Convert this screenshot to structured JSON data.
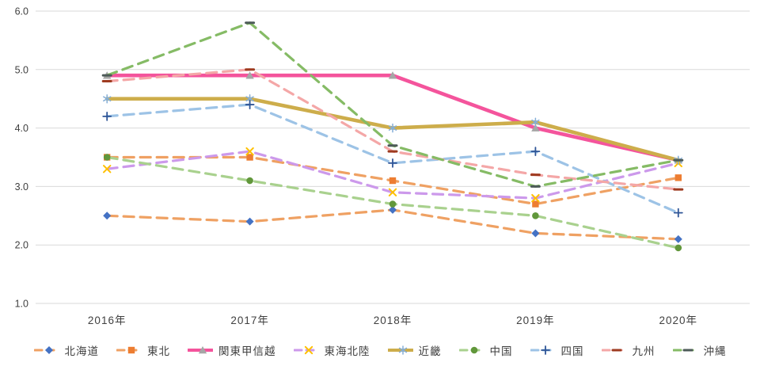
{
  "chart": {
    "background": "#ffffff",
    "grid_color": "#d9d9d9",
    "axis_text_color": "#404040",
    "y_tick_labels": [
      "6.0",
      "5.0",
      "4.0",
      "3.0",
      "2.0",
      "1.0"
    ]
  },
  "chart_data": {
    "type": "line",
    "title": "",
    "xlabel": "",
    "ylabel": "",
    "categories": [
      "2016年",
      "2017年",
      "2018年",
      "2019年",
      "2020年"
    ],
    "ylim": [
      1.0,
      6.0
    ],
    "y_tick_step": 1.0,
    "grid": true,
    "legend_position": "bottom",
    "series": [
      {
        "name": "北海道",
        "key": "hokkaido",
        "values": [
          2.5,
          2.4,
          2.6,
          2.2,
          2.1
        ],
        "color": "#efa163",
        "dashed": true,
        "width": 3.2,
        "marker": "diamond",
        "marker_color": "#4472c4"
      },
      {
        "name": "東北",
        "key": "tohoku",
        "values": [
          3.5,
          3.5,
          3.1,
          2.7,
          3.15
        ],
        "color": "#efa163",
        "dashed": true,
        "width": 3.2,
        "marker": "square",
        "marker_color": "#ed7d31"
      },
      {
        "name": "関東甲信越",
        "key": "kanto-koshinetsu",
        "values": [
          4.9,
          4.9,
          4.9,
          4.0,
          3.45
        ],
        "color": "#f4549c",
        "dashed": false,
        "width": 4.6,
        "marker": "triangle",
        "marker_color": "#a6a6a6"
      },
      {
        "name": "東海北陸",
        "key": "tokai-hokuriku",
        "values": [
          3.3,
          3.6,
          2.9,
          2.8,
          3.4
        ],
        "color": "#cc99eb",
        "dashed": true,
        "width": 3.2,
        "marker": "x",
        "marker_color": "#ffc000"
      },
      {
        "name": "近畿",
        "key": "kinki",
        "values": [
          4.5,
          4.5,
          4.0,
          4.1,
          3.45
        ],
        "color": "#cdad4b",
        "dashed": false,
        "width": 4.6,
        "marker": "asterisk",
        "marker_color": "#84aed8"
      },
      {
        "name": "中国",
        "key": "chugoku",
        "values": [
          3.5,
          3.1,
          2.7,
          2.5,
          1.95
        ],
        "color": "#a9d18e",
        "dashed": true,
        "width": 3.2,
        "marker": "circle",
        "marker_color": "#61973b"
      },
      {
        "name": "四国",
        "key": "shikoku",
        "values": [
          4.2,
          4.4,
          3.4,
          3.6,
          2.55
        ],
        "color": "#9dc3e6",
        "dashed": true,
        "width": 3.2,
        "marker": "plus",
        "marker_color": "#2f5597"
      },
      {
        "name": "九州",
        "key": "kyushu",
        "values": [
          4.8,
          5.0,
          3.6,
          3.2,
          2.95
        ],
        "color": "#f4a7a7",
        "dashed": true,
        "width": 3.2,
        "marker": "dash",
        "marker_color": "#9e3b20"
      },
      {
        "name": "沖縄",
        "key": "okinawa",
        "values": [
          4.9,
          5.8,
          3.7,
          3.0,
          3.45
        ],
        "color": "#85bb65",
        "dashed": true,
        "width": 3.2,
        "marker": "dash",
        "marker_color": "#4d5a58"
      }
    ]
  }
}
